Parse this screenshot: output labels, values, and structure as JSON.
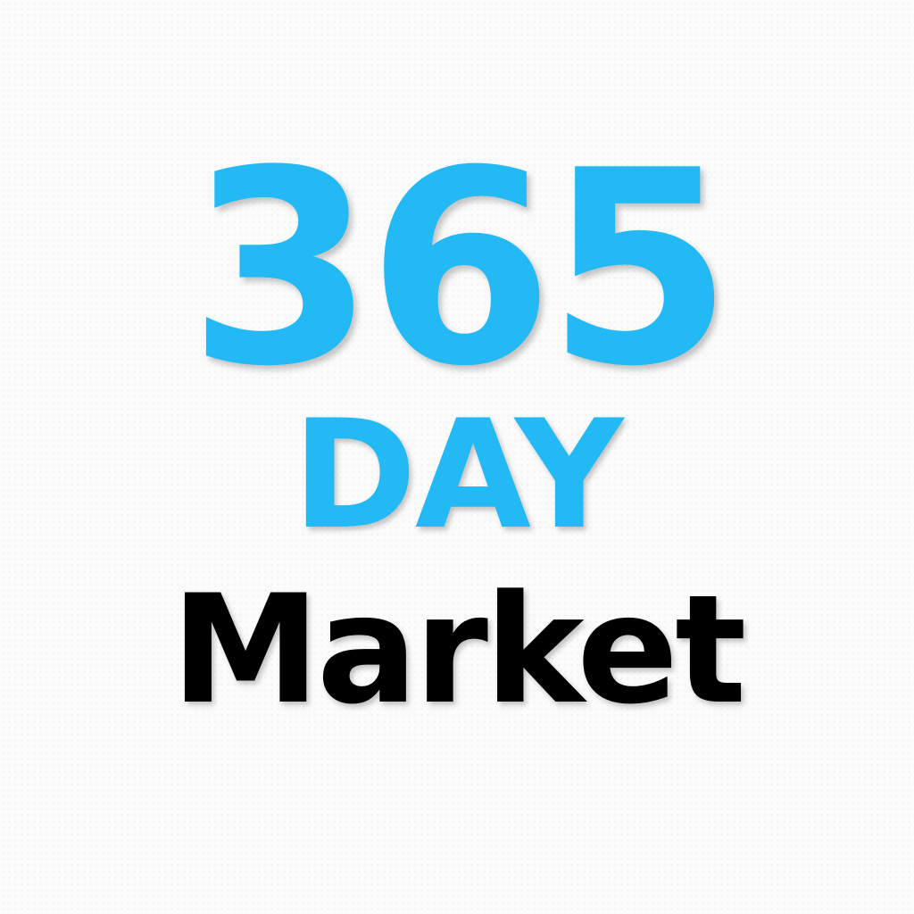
{
  "logo": {
    "line1": "365",
    "line2": "DAY",
    "line3": "Market"
  },
  "colors": {
    "accent": "#22b9f5",
    "text": "#000000",
    "background": "#fbfbfb"
  }
}
